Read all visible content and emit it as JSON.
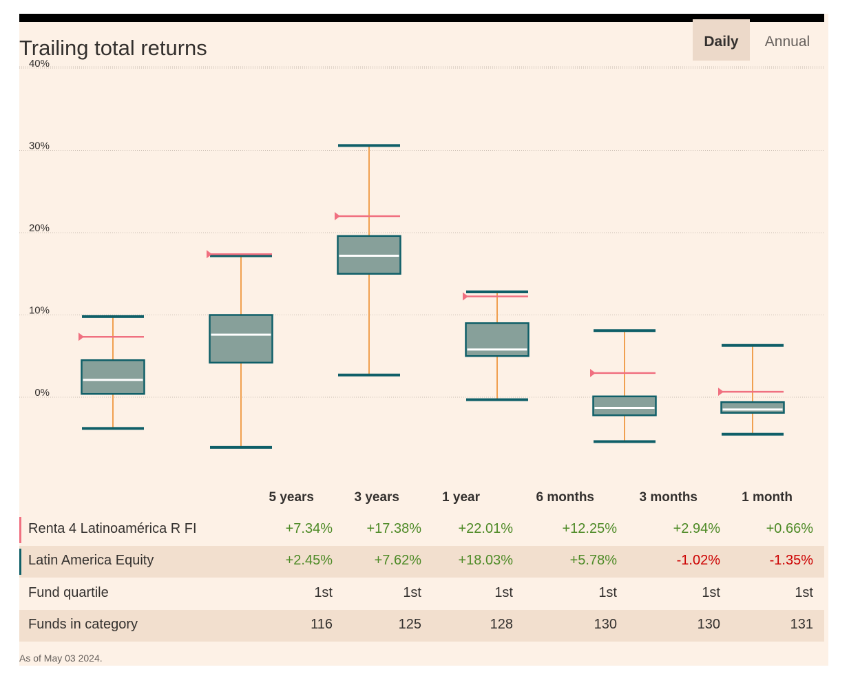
{
  "header": {
    "title": "Trailing total returns",
    "tabs": [
      {
        "label": "Daily",
        "active": true
      },
      {
        "label": "Annual",
        "active": false
      }
    ]
  },
  "colors": {
    "box_fill": "#87a09a",
    "box_stroke": "#0f5f68",
    "whisker": "#f0a050",
    "median": "#ffffff",
    "fund_marker": "#f07080",
    "category_marker": "#0f5f68",
    "positive": "#4d8a26",
    "negative": "#cc0000"
  },
  "chart_data": {
    "type": "boxplot",
    "title": "Trailing total returns",
    "y_ticks": [
      "40%",
      "30%",
      "20%",
      "10%",
      "0%"
    ],
    "ylim": [
      -10,
      40
    ],
    "grid": true,
    "categories": [
      "5 years",
      "3 years",
      "1 year",
      "6 months",
      "3 months",
      "1 month"
    ],
    "boxes": [
      {
        "whisker_high": 9.8,
        "q3": 4.5,
        "median": 2.1,
        "q1": 0.4,
        "whisker_low": -3.8
      },
      {
        "whisker_high": 17.2,
        "q3": 10.0,
        "median": 7.6,
        "q1": 4.2,
        "whisker_low": -6.1
      },
      {
        "whisker_high": 30.6,
        "q3": 19.6,
        "median": 17.2,
        "q1": 15.0,
        "whisker_low": 2.7
      },
      {
        "whisker_high": 12.8,
        "q3": 9.0,
        "median": 5.8,
        "q1": 5.0,
        "whisker_low": -0.3
      },
      {
        "whisker_high": 8.1,
        "q3": 0.1,
        "median": -1.3,
        "q1": -2.2,
        "whisker_low": -5.4
      },
      {
        "whisker_high": 6.3,
        "q3": -0.6,
        "median": -1.5,
        "q1": -1.9,
        "whisker_low": -4.5
      }
    ],
    "series": [
      {
        "name": "Renta 4 Latinoamérica R FI",
        "values": [
          7.34,
          17.38,
          22.01,
          12.25,
          2.94,
          0.66
        ]
      }
    ]
  },
  "table": {
    "columns": [
      "5 years",
      "3 years",
      "1 year",
      "6 months",
      "3 months",
      "1 month"
    ],
    "rows": [
      {
        "label": "Renta 4 Latinoamérica R FI",
        "marker": "fund",
        "values": [
          "+7.34%",
          "+17.38%",
          "+22.01%",
          "+12.25%",
          "+2.94%",
          "+0.66%"
        ]
      },
      {
        "label": "Latin America Equity",
        "marker": "category",
        "values": [
          "+2.45%",
          "+7.62%",
          "+18.03%",
          "+5.78%",
          "-1.02%",
          "-1.35%"
        ]
      },
      {
        "label": "Fund quartile",
        "marker": "none",
        "values": [
          "1st",
          "1st",
          "1st",
          "1st",
          "1st",
          "1st"
        ]
      },
      {
        "label": "Funds in category",
        "marker": "none",
        "values": [
          "116",
          "125",
          "128",
          "130",
          "130",
          "131"
        ]
      }
    ]
  },
  "footnote": "As of May 03 2024."
}
